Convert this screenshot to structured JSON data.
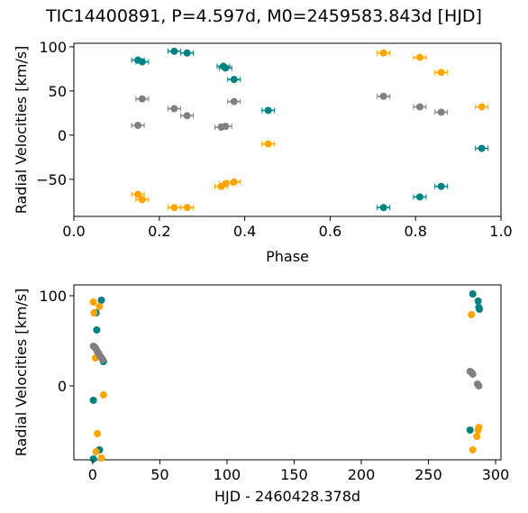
{
  "figure": {
    "title": "TIC14400891, P=4.597d, M0=2459583.843d [HJD]"
  },
  "colors": {
    "star_a": "#008080",
    "star_b": "#ffa500",
    "third": "#808080"
  },
  "chart_data": [
    {
      "type": "scatter",
      "name": "phase-plot",
      "title": "TIC14400891, P=4.597d, M0=2459583.843d [HJD]",
      "xlabel": "Phase",
      "ylabel": "Radial Velocities [km/s]",
      "xlim": [
        0.0,
        1.0
      ],
      "ylim": [
        -92,
        104
      ],
      "xticks": [
        0.0,
        0.2,
        0.4,
        0.6,
        0.8,
        1.0
      ],
      "xtick_labels": [
        "0.0",
        "0.2",
        "0.4",
        "0.6",
        "0.8",
        "1.0"
      ],
      "yticks": [
        -50,
        0,
        50,
        100
      ],
      "ytick_labels": [
        "−50",
        "0",
        "50",
        "100"
      ],
      "error_bars": true,
      "series": [
        {
          "color": "teal",
          "x": [
            0.15,
            0.16,
            0.235,
            0.265,
            0.35,
            0.355,
            0.375,
            0.455,
            0.725,
            0.81,
            0.86,
            0.955
          ],
          "y": [
            85,
            83,
            95,
            93,
            78,
            76,
            63,
            28,
            -82,
            -70,
            -58,
            -15
          ]
        },
        {
          "color": "orange",
          "x": [
            0.15,
            0.16,
            0.235,
            0.265,
            0.345,
            0.355,
            0.375,
            0.455,
            0.725,
            0.81,
            0.86,
            0.955
          ],
          "y": [
            -67,
            -73,
            -82,
            -82,
            -58,
            -55,
            -53,
            -10,
            93,
            88,
            71,
            32
          ]
        },
        {
          "color": "gray",
          "x": [
            0.15,
            0.16,
            0.235,
            0.265,
            0.345,
            0.355,
            0.375,
            0.725,
            0.81,
            0.86
          ],
          "y": [
            11,
            41,
            30,
            22,
            9,
            10,
            38,
            44,
            32,
            26
          ]
        }
      ]
    },
    {
      "type": "scatter",
      "name": "time-plot",
      "xlabel": "HJD - 2460428.378d",
      "ylabel": "Radial Velocities [km/s]",
      "xlim": [
        -14,
        304
      ],
      "ylim": [
        -82,
        112
      ],
      "xticks": [
        0,
        50,
        100,
        150,
        200,
        250,
        300
      ],
      "xtick_labels": [
        "0",
        "50",
        "100",
        "150",
        "200",
        "250",
        "300"
      ],
      "yticks": [
        0,
        100
      ],
      "ytick_labels": [
        "0",
        "100"
      ],
      "error_bars": false,
      "series": [
        {
          "color": "teal",
          "x": [
            0.5,
            2.5,
            3.0,
            5.0,
            6.5,
            8.0,
            0.5,
            5.0,
            283,
            287,
            287.5,
            288,
            281
          ],
          "y": [
            -16,
            81,
            62,
            -71,
            95,
            27,
            -81,
            -71,
            102,
            94,
            87,
            85,
            -49
          ]
        },
        {
          "color": "orange",
          "x": [
            0.5,
            2.0,
            3.5,
            5.0,
            6.5,
            8.0,
            1.0,
            2.5,
            282,
            283,
            286,
            287.5,
            287
          ],
          "y": [
            93,
            31,
            -53,
            88,
            -80,
            -10,
            81,
            -73,
            79,
            -71,
            -56,
            -46,
            -49
          ]
        },
        {
          "color": "gray",
          "x": [
            0.5,
            1.5,
            2.5,
            3.5,
            4.5,
            5.5,
            6.5,
            7.5,
            281,
            282,
            283,
            286.5,
            287.5
          ],
          "y": [
            44,
            43,
            41,
            38,
            36,
            33,
            31,
            29,
            16,
            15,
            13,
            2,
            0
          ]
        }
      ]
    }
  ]
}
